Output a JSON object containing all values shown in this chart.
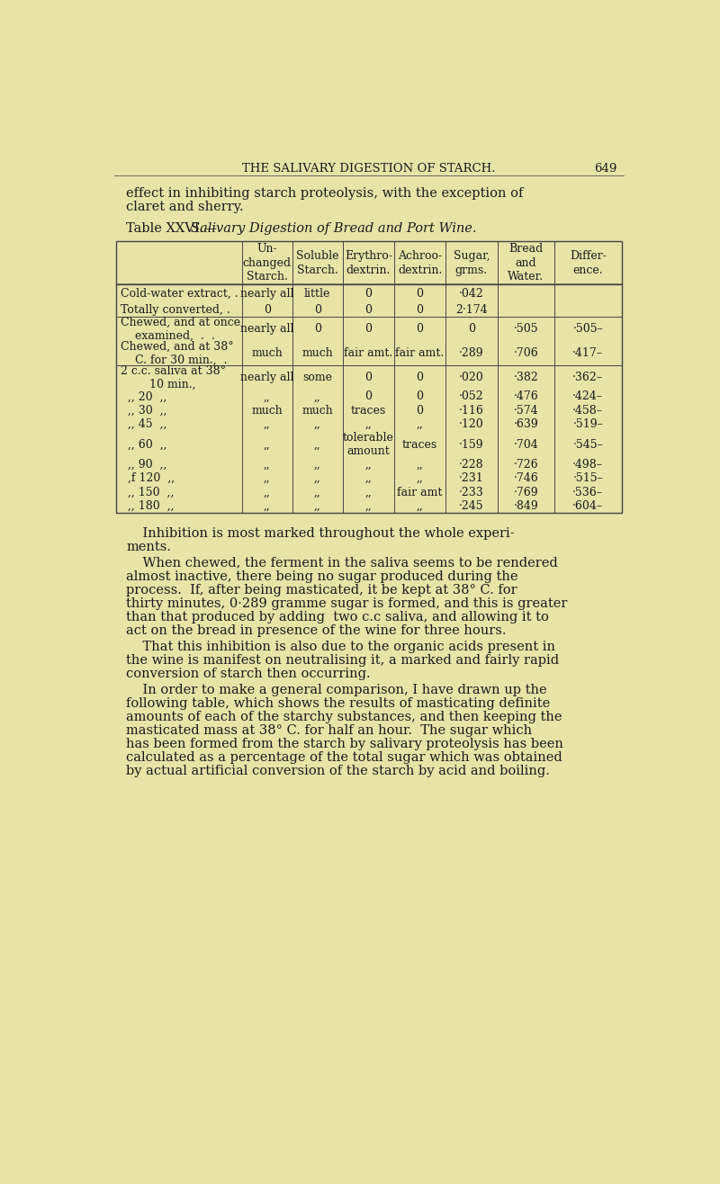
{
  "bg_color": "#e8e4a8",
  "header_text": "THE SALIVARY DIGESTION OF STARCH.",
  "page_number": "649",
  "intro_line1": "effect in inhibiting starch proteolysis, with the exception of",
  "intro_line2": "claret and sherry.",
  "table_title_roman": "Table XXVI.—",
  "table_title_italic": "Salivary Digestion of Bread and Port Wine.",
  "col_headers": [
    "Un-\nchanged\nStarch.",
    "Soluble\nStarch.",
    "Erythro-\ndextrin.",
    "Achroo-\ndextrin.",
    "Sugar,\ngrms.",
    "Bread\nand\nWater.",
    "Differ-\nence."
  ],
  "rows": [
    [
      "Cold-water extract, .",
      "nearly all",
      "little",
      "0",
      "0",
      "·042",
      "",
      ""
    ],
    [
      "Totally converted, .",
      "0",
      "0",
      "0",
      "0",
      "2·174",
      "",
      ""
    ],
    [
      "Chewed, and at once\n    examined,  .  .",
      "nearly all",
      "0",
      "0",
      "0",
      "0",
      "·505",
      "·505–"
    ],
    [
      "Chewed, and at 38°\n    C. for 30 min.,  .",
      "much",
      "much",
      "fair amt.",
      "fair amt.",
      "·289",
      "·706",
      "·417–"
    ],
    [
      "2 c.c. saliva at 38°\n        10 min.,",
      "nearly all",
      "some",
      "0",
      "0",
      "·020",
      "·382",
      "·362–"
    ],
    [
      ",, 20  ,,",
      ",,",
      ",,",
      "0",
      "0",
      "·052",
      "·476",
      "·424–"
    ],
    [
      ",, 30  ,,",
      "much",
      "much",
      "traces",
      "0",
      "·116",
      "·574",
      "·458–"
    ],
    [
      ",, 45  ,,",
      ",,",
      ",,",
      ",,",
      ",,",
      "·120",
      "·639",
      "·519–"
    ],
    [
      ",, 60  ,,",
      ",,",
      ",,",
      "tolerable\namount",
      "traces",
      "·159",
      "·704",
      "·545–"
    ],
    [
      ",, 90  ,,",
      ",,",
      ",,",
      ",,",
      ",,",
      "·228",
      "·726",
      "·498–"
    ],
    [
      ",f 120  ,,",
      ",,",
      ",,",
      ",,",
      ",,",
      "·231",
      "·746",
      "·515–"
    ],
    [
      ",, 150  ,,",
      ",,",
      ",,",
      ",,",
      "fair amt",
      "·233",
      "·769",
      "·536–"
    ],
    [
      ",, 180  ,,",
      ",,",
      ",,",
      ",,",
      ",,",
      "·245",
      "·849",
      "·604–"
    ]
  ],
  "para1_indent": "    Inhibition is most marked throughout the whole experi-",
  "para1_cont": "ments.",
  "para2_indent": "    When chewed, the ferment in the saliva seems to be rendered",
  "para2_lines": [
    "almost inactive, there being no sugar produced during the",
    "process.  If, after being masticated, it be kept at 38° C. for",
    "thirty minutes, 0·289 gramme sugar is formed, and this is greater",
    "than that produced by adding  two c.c saliva, and allowing it to",
    "act on the bread in presence of the wine for three hours."
  ],
  "para3_indent": "    That this inhibition is also due to the organic acids present in",
  "para3_lines": [
    "the wine is manifest on neutralising it, a marked and fairly rapid",
    "conversion of starch then occurring."
  ],
  "para4_indent": "    In order to make a general comparison, I have drawn up the",
  "para4_lines": [
    "following table, which shows the results of masticating definite",
    "amounts of each of the starchy substances, and then keeping the",
    "masticated mass at 38° C. for half an hour.  The sugar which",
    "has been formed from the starch by salivary proteolysis has been",
    "calculated as a percentage of the total sugar which was obtained",
    "by actual artificial conversion of the starch by acid and boiling."
  ]
}
